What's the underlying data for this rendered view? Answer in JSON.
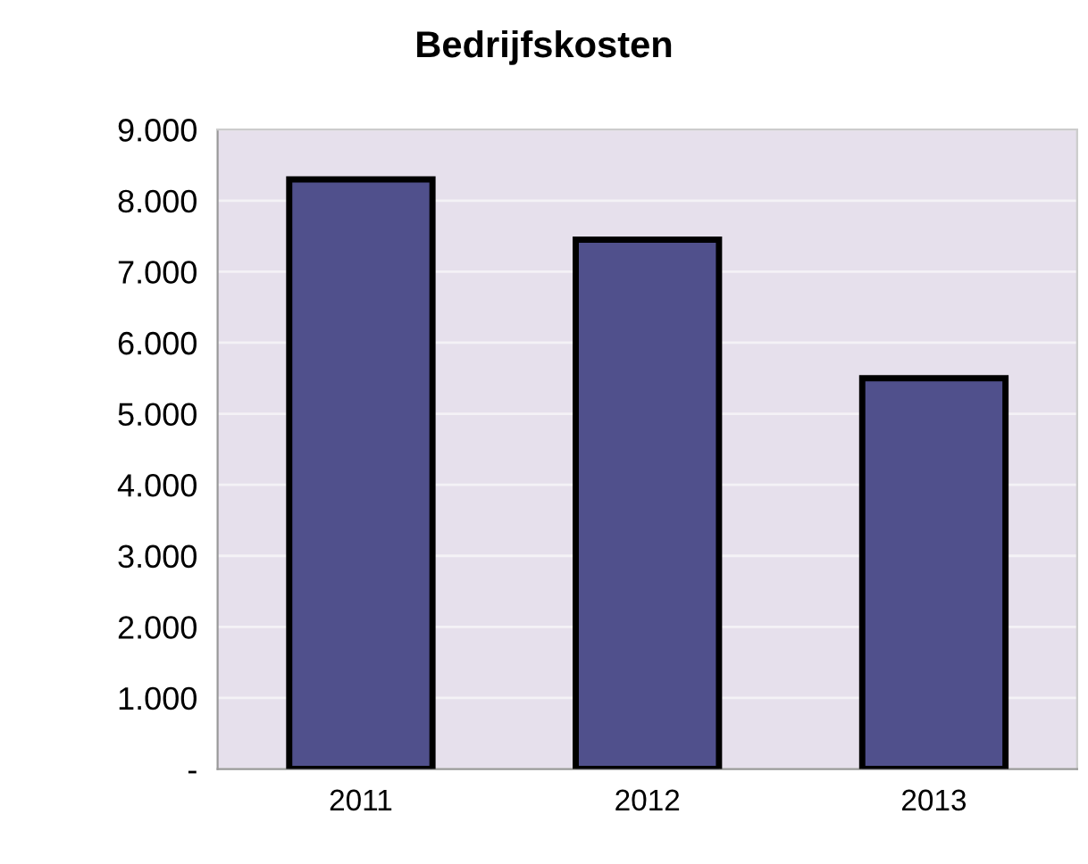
{
  "chart_data": {
    "type": "bar",
    "title": "Bedrijfskosten",
    "categories": [
      "2011",
      "2012",
      "2013"
    ],
    "values": [
      8300,
      7450,
      5500
    ],
    "color": "#50508c",
    "ylim": [
      0,
      9000
    ],
    "yticks": [
      {
        "value": 0,
        "label": "-"
      },
      {
        "value": 1000,
        "label": "1.000"
      },
      {
        "value": 2000,
        "label": "2.000"
      },
      {
        "value": 3000,
        "label": "3.000"
      },
      {
        "value": 4000,
        "label": "4.000"
      },
      {
        "value": 5000,
        "label": "5.000"
      },
      {
        "value": 6000,
        "label": "6.000"
      },
      {
        "value": 7000,
        "label": "7.000"
      },
      {
        "value": 8000,
        "label": "8.000"
      },
      {
        "value": 9000,
        "label": "9.000"
      }
    ],
    "grid": "y"
  }
}
